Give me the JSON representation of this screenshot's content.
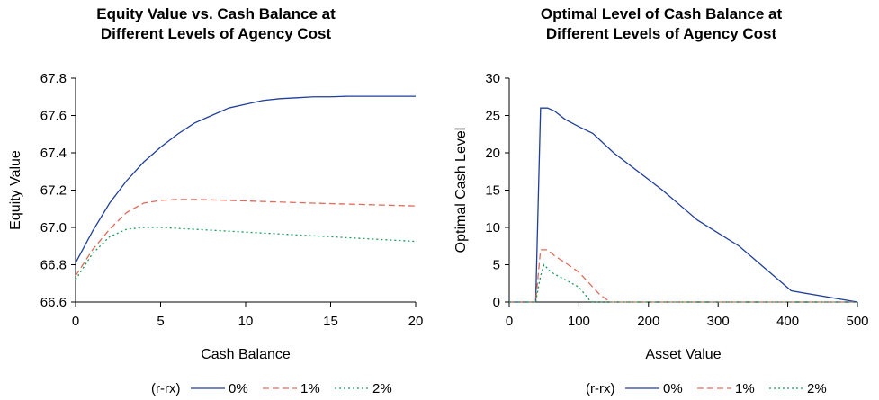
{
  "chart_data": [
    {
      "type": "line",
      "title": [
        "Equity Value vs. Cash Balance at",
        "Different Levels of Agency Cost"
      ],
      "xlabel": "Cash Balance",
      "ylabel": "Equity Value",
      "xlim": [
        0,
        20
      ],
      "ylim": [
        66.6,
        67.8
      ],
      "xticks": [
        0,
        5,
        10,
        15,
        20
      ],
      "xtick_labels": [
        "0",
        "5",
        "10",
        "15",
        "20"
      ],
      "yticks": [
        66.6,
        66.8,
        67.0,
        67.2,
        67.4,
        67.6,
        67.8
      ],
      "ytick_labels": [
        "66.6",
        "66.8",
        "67.0",
        "67.2",
        "67.4",
        "67.6",
        "67.8"
      ],
      "grid": false,
      "legend": {
        "title": "(r-rx)",
        "placement": "bottom"
      },
      "series": [
        {
          "name": "0%",
          "color": "#1f3f99",
          "dash": "solid",
          "x": [
            0,
            1,
            2,
            3,
            4,
            5,
            6,
            7,
            8,
            9,
            10,
            11,
            12,
            13,
            14,
            15,
            16,
            17,
            18,
            19,
            20
          ],
          "y": [
            66.81,
            66.98,
            67.13,
            67.25,
            67.35,
            67.43,
            67.5,
            67.56,
            67.6,
            67.64,
            67.66,
            67.68,
            67.69,
            67.695,
            67.7,
            67.7,
            67.703,
            67.703,
            67.703,
            67.703,
            67.703
          ]
        },
        {
          "name": "1%",
          "color": "#e06c5a",
          "dash": "dashed",
          "x": [
            0,
            1,
            2,
            3,
            4,
            5,
            6,
            7,
            8,
            10,
            12,
            14,
            16,
            18,
            20
          ],
          "y": [
            66.74,
            66.88,
            66.99,
            67.08,
            67.13,
            67.145,
            67.15,
            67.15,
            67.148,
            67.142,
            67.136,
            67.13,
            67.125,
            67.12,
            67.115
          ]
        },
        {
          "name": "2%",
          "color": "#1a9a5a",
          "dash": "dotted",
          "x": [
            0,
            1,
            2,
            3,
            4,
            5,
            6,
            7,
            8,
            10,
            12,
            14,
            16,
            18,
            20
          ],
          "y": [
            66.72,
            66.86,
            66.95,
            66.99,
            67.0,
            67.0,
            66.995,
            66.99,
            66.985,
            66.975,
            66.965,
            66.955,
            66.945,
            66.935,
            66.925
          ]
        }
      ]
    },
    {
      "type": "line",
      "title": [
        "Optimal Level of Cash Balance at",
        "Different Levels of Agency Cost"
      ],
      "xlabel": "Asset Value",
      "ylabel": "Optimal Cash Level",
      "xlim": [
        0,
        500
      ],
      "ylim": [
        0,
        30
      ],
      "xticks": [
        0,
        100,
        200,
        300,
        400,
        500
      ],
      "xtick_labels": [
        "0",
        "100",
        "200",
        "300",
        "400",
        "500"
      ],
      "yticks": [
        0,
        5,
        10,
        15,
        20,
        25,
        30
      ],
      "ytick_labels": [
        "0",
        "5",
        "10",
        "15",
        "20",
        "25",
        "30"
      ],
      "grid": false,
      "legend": {
        "title": "(r-rx)",
        "placement": "bottom"
      },
      "series": [
        {
          "name": "0%",
          "color": "#1f3f99",
          "dash": "solid",
          "x": [
            0,
            35,
            38,
            45,
            55,
            65,
            80,
            100,
            120,
            150,
            220,
            270,
            330,
            405,
            500
          ],
          "y": [
            0,
            0,
            0,
            26,
            26,
            25.6,
            24.5,
            23.5,
            22.6,
            20,
            15,
            11,
            7.5,
            1.5,
            0
          ]
        },
        {
          "name": "1%",
          "color": "#e06c5a",
          "dash": "dashed",
          "x": [
            0,
            38,
            45,
            55,
            65,
            80,
            100,
            120,
            130,
            145,
            160,
            200,
            300,
            400,
            500
          ],
          "y": [
            0,
            0,
            7,
            7,
            6.2,
            5.3,
            4,
            2,
            1,
            0,
            0,
            0,
            0,
            0,
            0
          ]
        },
        {
          "name": "2%",
          "color": "#1a9a5a",
          "dash": "dotted",
          "x": [
            0,
            38,
            45,
            50,
            60,
            80,
            100,
            115,
            120,
            130,
            200,
            300,
            400,
            500
          ],
          "y": [
            0,
            0,
            3.5,
            5,
            4,
            3,
            2,
            0.3,
            0,
            0,
            0,
            0,
            0,
            0
          ]
        }
      ]
    }
  ]
}
